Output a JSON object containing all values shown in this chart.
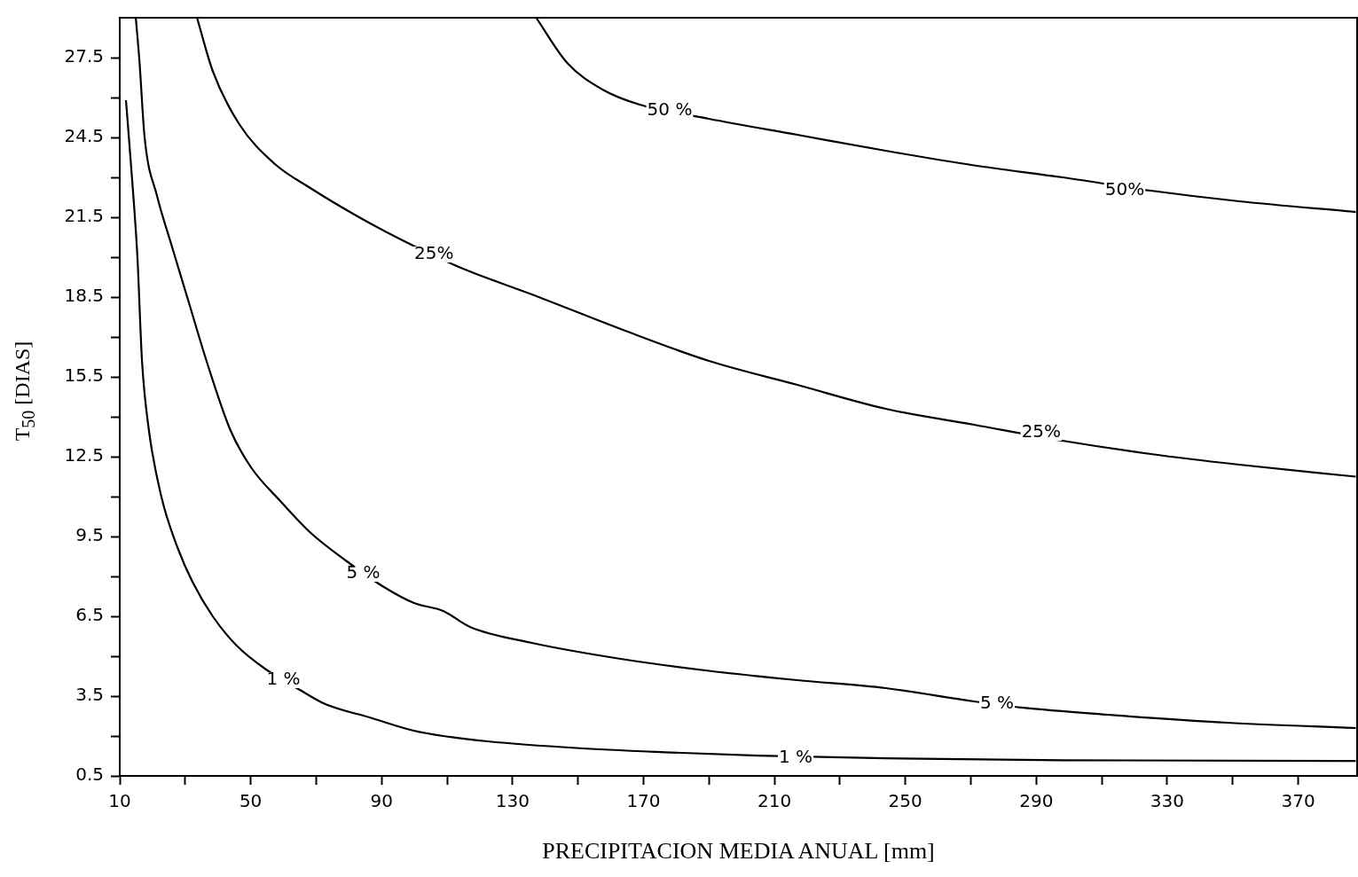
{
  "chart_data": {
    "type": "line",
    "xlabel": "PRECIPITACION MEDIA ANUAL [mm]",
    "ylabel": "T$_{50}$ [DIAS]",
    "xlim": [
      10,
      388
    ],
    "ylim": [
      0.5,
      29
    ],
    "xticks": [
      10,
      {
        "value": 30,
        "label": null
      },
      50,
      {
        "value": 70,
        "label": null
      },
      90,
      {
        "value": 110,
        "label": null
      },
      130,
      {
        "value": 150,
        "label": null
      },
      170,
      {
        "value": 190,
        "label": null
      },
      210,
      {
        "value": 230,
        "label": null
      },
      250,
      {
        "value": 270,
        "label": null
      },
      290,
      {
        "value": 310,
        "label": null
      },
      330,
      {
        "value": 350,
        "label": null
      },
      370
    ],
    "yticks": [
      0.5,
      {
        "value": 2,
        "label": null
      },
      3.5,
      {
        "value": 5,
        "label": null
      },
      6.5,
      {
        "value": 8,
        "label": null
      },
      9.5,
      {
        "value": 11,
        "label": null
      },
      12.5,
      {
        "value": 14,
        "label": null
      },
      15.5,
      {
        "value": 17,
        "label": null
      },
      18.5,
      {
        "value": 20,
        "label": null
      },
      21.5,
      {
        "value": 23,
        "label": null
      },
      24.5,
      {
        "value": 26,
        "label": null
      },
      27.5
    ],
    "grid": false,
    "legend": false,
    "series": [
      {
        "color": "#000000",
        "x": [
          11.9,
          14.1,
          15.4,
          16.8,
          18.9,
          22.7,
          27.6,
          32.2,
          38.4,
          45.7,
          54.7,
          65.5,
          72.8,
          86.3,
          99.8,
          108.8,
          122.3,
          149.4,
          176.5,
          205,
          244,
          298,
          387.6
        ],
        "values": [
          25.9,
          22.4,
          20.0,
          16.1,
          13.5,
          11.0,
          9.1,
          7.8,
          6.5,
          5.4,
          4.5,
          3.7,
          3.2,
          2.7,
          2.2,
          2.0,
          1.8,
          1.55,
          1.39,
          1.26,
          1.16,
          1.09,
          1.06
        ]
      },
      {
        "color": "#000000",
        "x": [
          14.9,
          16.0,
          17.6,
          21.4,
          25.7,
          31.1,
          36.5,
          43.8,
          50.1,
          59.3,
          68.2,
          79.0,
          90.7,
          99.9,
          108.8,
          117,
          135.9,
          163,
          190,
          217,
          244,
          271,
          285.4,
          311.8,
          348.4,
          387.6
        ],
        "values": [
          29.0,
          27.4,
          24.5,
          22.3,
          20.5,
          18.3,
          16.1,
          13.5,
          12.1,
          10.8,
          9.65,
          8.6,
          7.6,
          7.0,
          6.7,
          6.1,
          5.5,
          4.9,
          4.45,
          4.1,
          3.8,
          3.3,
          3.07,
          2.8,
          2.5,
          2.3
        ]
      },
      {
        "color": "#000000",
        "x": [
          33.6,
          38.4,
          46.5,
          57.4,
          68.2,
          81.7,
          95.3,
          114.2,
          135.9,
          163,
          190,
          217,
          244,
          271,
          298,
          325,
          352,
          387.6
        ],
        "values": [
          29.0,
          27.0,
          25.0,
          23.5,
          22.6,
          21.6,
          20.7,
          19.6,
          18.6,
          17.3,
          16.1,
          15.2,
          14.3,
          13.7,
          13.1,
          12.6,
          12.2,
          11.75
        ]
      },
      {
        "color": "#000000",
        "x": [
          137.2,
          146.7,
          157.5,
          168.4,
          190,
          217,
          244,
          271,
          298,
          325,
          352,
          387.6
        ],
        "values": [
          29.0,
          27.3,
          26.3,
          25.75,
          25.2,
          24.6,
          24.0,
          23.45,
          23.0,
          22.5,
          22.1,
          21.7
        ]
      }
    ],
    "annotations": [
      {
        "text": "1 %",
        "x": 60,
        "y": 4.1
      },
      {
        "text": "1 %",
        "x": 216.5,
        "y": 1.16
      },
      {
        "text": "5 %",
        "x": 84.4,
        "y": 8.1
      },
      {
        "text": "5 %",
        "x": 278,
        "y": 3.2
      },
      {
        "text": "25%",
        "x": 106,
        "y": 20.1
      },
      {
        "text": "25%",
        "x": 291.5,
        "y": 13.4
      },
      {
        "text": "50 %",
        "x": 178,
        "y": 25.5
      },
      {
        "text": "50%",
        "x": 317,
        "y": 22.5
      }
    ]
  }
}
